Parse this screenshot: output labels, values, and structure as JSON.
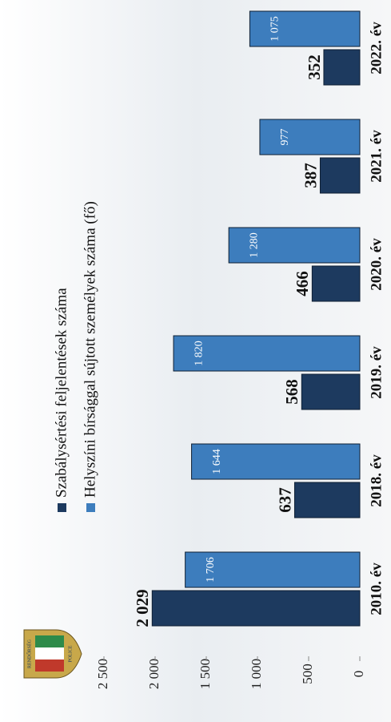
{
  "chart_data": {
    "type": "bar",
    "logo": {
      "top": "RENDŐRSÉG",
      "bottom": "POLICE"
    },
    "categories": [
      "2010. év",
      "2018. év",
      "2019. év",
      "2020. év",
      "2021. év",
      "2022. év"
    ],
    "series": [
      {
        "name": "Szabálysértési feljelentések száma",
        "color": "#1d3a5f",
        "values": [
          2029,
          637,
          568,
          466,
          387,
          352
        ],
        "value_labels": [
          "2 029",
          "637",
          "568",
          "466",
          "387",
          "352"
        ]
      },
      {
        "name": "Helyszíni bírsággal sújtott személyek száma (fő)",
        "color": "#3d7dbd",
        "values": [
          1706,
          1644,
          1820,
          1280,
          977,
          1075
        ],
        "value_labels": [
          "1 706",
          "1 644",
          "1 820",
          "1 280",
          "977",
          "1 075"
        ]
      }
    ],
    "ylim": [
      0,
      2500
    ],
    "yticks": [
      0,
      500,
      {
        "value": 1000,
        "label": "1 000"
      },
      {
        "value": 1500,
        "label": "1 500"
      },
      {
        "value": 2000,
        "label": "2 000"
      },
      {
        "value": 2500,
        "label": "2 500"
      }
    ],
    "grid": false
  }
}
